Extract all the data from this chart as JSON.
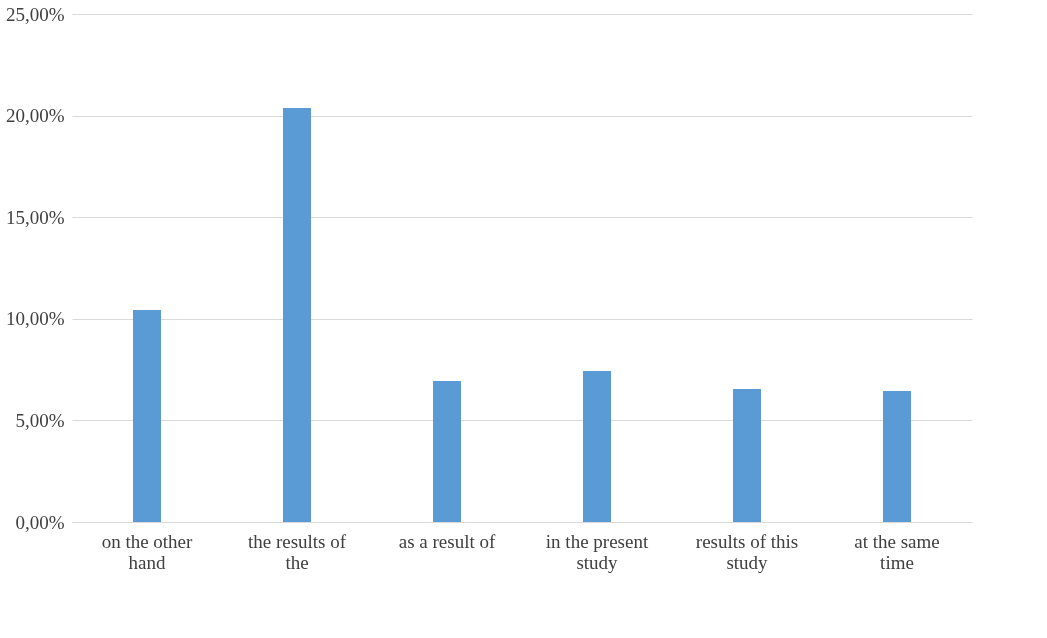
{
  "chart_data": {
    "type": "bar",
    "categories": [
      "on the other hand",
      "the results of the",
      "as a result of",
      "in the present study",
      "results of this study",
      "at the same time"
    ],
    "values": [
      10.43,
      20.37,
      6.94,
      7.43,
      6.55,
      6.45
    ],
    "color": "#5b9bd5",
    "ylim": [
      0,
      25
    ],
    "yticks": [
      {
        "value": 0,
        "label": "0,00%"
      },
      {
        "value": 5,
        "label": "5,00%"
      },
      {
        "value": 10,
        "label": "10,00%"
      },
      {
        "value": 15,
        "label": "15,00%"
      },
      {
        "value": 20,
        "label": "20,00%"
      },
      {
        "value": 25,
        "label": "25,00%"
      }
    ],
    "grid": "y"
  }
}
